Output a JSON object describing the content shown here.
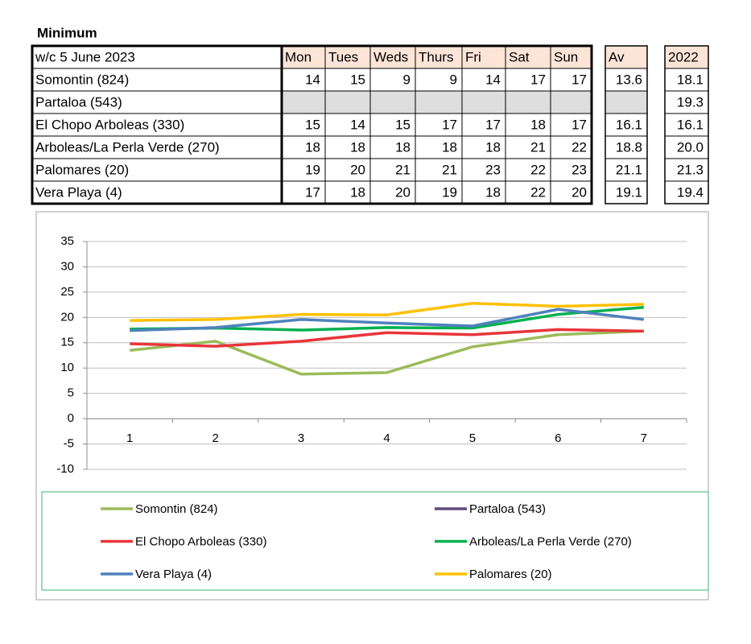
{
  "title": "Minimum",
  "table": {
    "header": [
      "w/c 5 June 2023",
      "Mon",
      "Tues",
      "Weds",
      "Thurs",
      "Fri",
      "Sat",
      "Sun",
      "Av",
      "2022"
    ],
    "rows": [
      [
        "Somontin (824)",
        14,
        15,
        9,
        9,
        14,
        17,
        17,
        "13.6",
        "18.1"
      ],
      [
        "Partaloa (543)",
        null,
        null,
        null,
        null,
        null,
        null,
        null,
        null,
        "19.3"
      ],
      [
        "El Chopo Arboleas (330)",
        15,
        14,
        15,
        17,
        17,
        18,
        17,
        "16.1",
        "16.1"
      ],
      [
        "Arboleas/La Perla Verde (270)",
        18,
        18,
        18,
        18,
        18,
        21,
        22,
        "18.8",
        "20.0"
      ],
      [
        "Palomares (20)",
        19,
        20,
        21,
        21,
        23,
        22,
        23,
        "21.1",
        "21.3"
      ],
      [
        "Vera Playa (4)",
        17,
        18,
        20,
        19,
        18,
        22,
        20,
        "19.1",
        "19.4"
      ]
    ]
  },
  "chart_data": {
    "type": "line",
    "categories": [
      1,
      2,
      3,
      4,
      5,
      6,
      7
    ],
    "ylim": [
      -10,
      35
    ],
    "yticks": [
      -10,
      -5,
      0,
      5,
      10,
      15,
      20,
      25,
      30,
      35
    ],
    "grid": true,
    "series": [
      {
        "name": "Somontin (824)",
        "color": "#9bbb59",
        "values": [
          13.5,
          15.3,
          8.8,
          9.1,
          14.2,
          16.6,
          17.3
        ]
      },
      {
        "name": "Partaloa (543)",
        "color": "#604a7b",
        "values": [
          null,
          null,
          null,
          null,
          null,
          null,
          null
        ]
      },
      {
        "name": "El Chopo Arboleas (330)",
        "color": "#e8353a",
        "values": [
          14.8,
          14.3,
          15.3,
          17.0,
          16.6,
          17.6,
          17.3
        ]
      },
      {
        "name": "Arboleas/La Perla Verde (270)",
        "color": "#00b050",
        "values": [
          17.7,
          17.9,
          17.5,
          18.0,
          17.9,
          20.6,
          22.0
        ]
      },
      {
        "name": "Vera Playa (4)",
        "color": "#4f81bd",
        "values": [
          17.4,
          18.0,
          19.6,
          18.9,
          18.3,
          21.6,
          19.6
        ]
      },
      {
        "name": "Palomares (20)",
        "color": "#ffc000",
        "values": [
          19.4,
          19.6,
          20.6,
          20.5,
          22.8,
          22.2,
          22.6
        ]
      }
    ]
  }
}
